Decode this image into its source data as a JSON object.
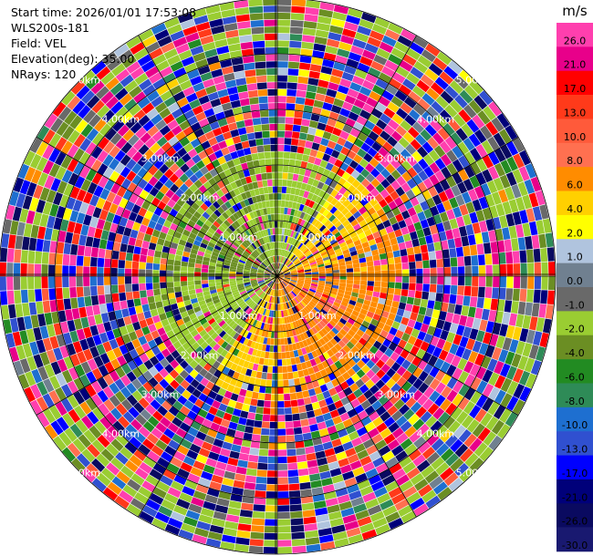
{
  "header": {
    "start_time": "Start time: 2026/01/01 17:53:08",
    "instrument": "WLS200s-181",
    "field": "Field: VEL",
    "elevation": "Elevation(deg): 35.00",
    "nrays": "NRays: 120"
  },
  "chart_data": {
    "type": "heatmap",
    "projection": "polar-ppi",
    "field": "VEL",
    "nrays": 120,
    "elevation_deg": 35.0,
    "range_ring_labels": [
      "1.00km",
      "2.00km",
      "3.00km",
      "4.00km",
      "5.00km"
    ],
    "range_rings_km": [
      1,
      2,
      3,
      4,
      5
    ],
    "max_range_km": 5.0,
    "colorbar": {
      "unit": "m/s",
      "ticks": [
        "26.0",
        "21.0",
        "17.0",
        "13.0",
        "10.0",
        "8.0",
        "6.0",
        "4.0",
        "2.0",
        "1.0",
        "0.0",
        "-1.0",
        "-2.0",
        "-4.0",
        "-6.0",
        "-8.0",
        "-10.0",
        "-13.0",
        "-17.0",
        "-21.0",
        "-26.0",
        "-30.0"
      ],
      "colors": [
        "#ff3fae",
        "#e8008a",
        "#ff0000",
        "#ff3a1a",
        "#ff5a3a",
        "#ff7050",
        "#ff8c00",
        "#ffd000",
        "#ffff00",
        "#b0c4de",
        "#708090",
        "#696969",
        "#9acd32",
        "#6b8e23",
        "#228b22",
        "#2e8b57",
        "#1e6fd0",
        "#3050d0",
        "#0000ff",
        "#00007a",
        "#0a0a60",
        "#191970"
      ]
    },
    "observations": "Near-field (< about 2 km) shows organised slightly negative (green) velocities to the west/north-west and slightly positive (yellow/orange) velocities to the east/south-east of the radar; beyond about 2 km the field is dominated by noise with random colours."
  }
}
